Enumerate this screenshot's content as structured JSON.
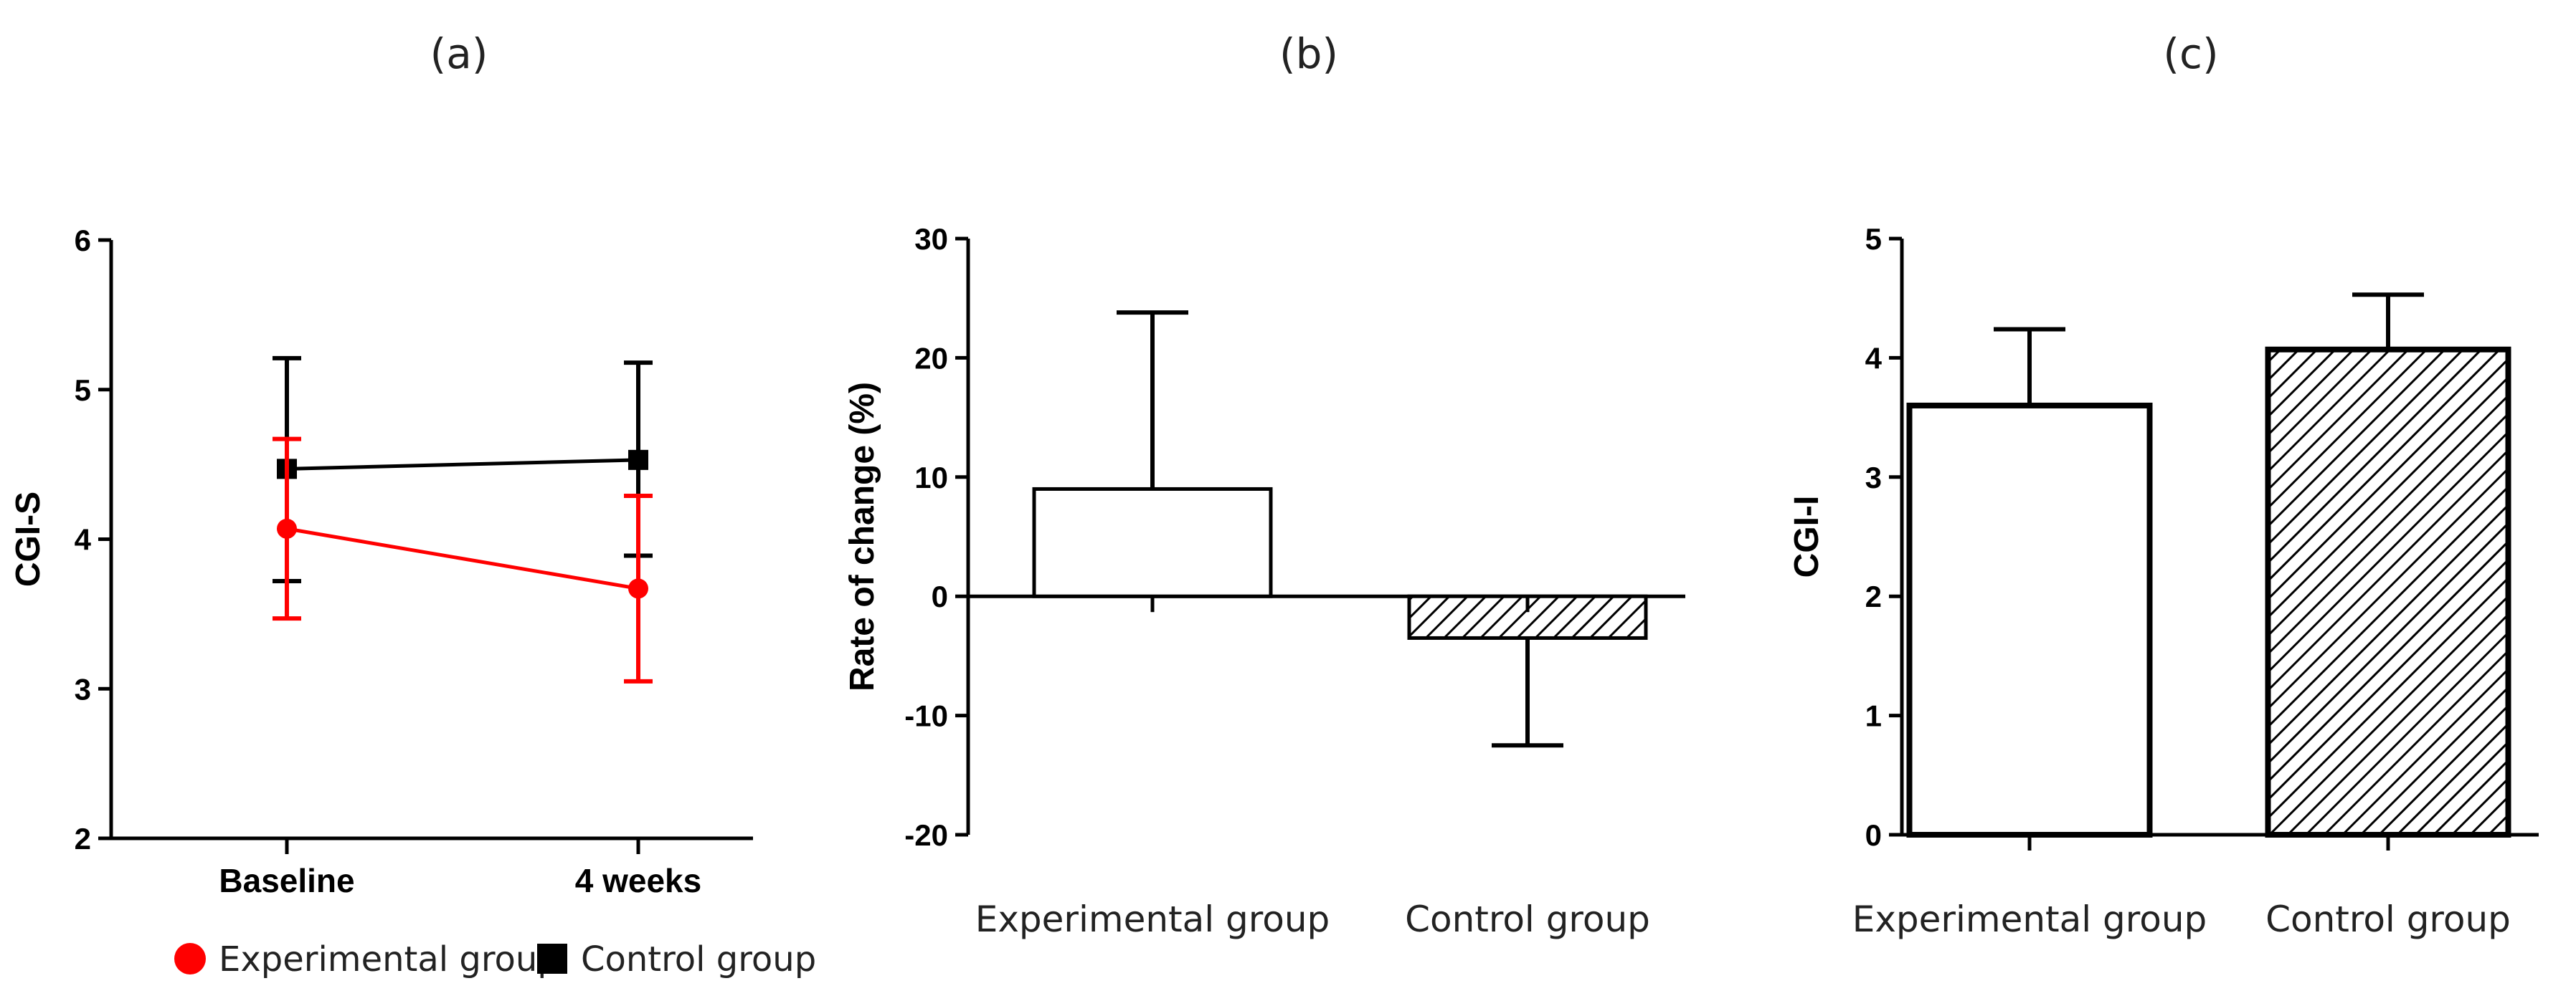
{
  "figure": {
    "panels": [
      {
        "label": "(a)"
      },
      {
        "label": "(b)"
      },
      {
        "label": "(c)"
      }
    ]
  },
  "chart_data": [
    {
      "panel": "(a)",
      "type": "line",
      "title": "",
      "xlabel": "",
      "ylabel": "CGI-S",
      "categories": [
        "Baseline",
        "4 weeks"
      ],
      "ylim": [
        2,
        6
      ],
      "yticks": [
        2,
        3,
        4,
        5,
        6
      ],
      "series": [
        {
          "name": "Experimental group",
          "color": "#ff0000",
          "marker": "circle",
          "values": [
            4.07,
            3.67
          ],
          "error_upper": [
            4.67,
            4.29
          ],
          "error_lower": [
            3.47,
            3.05
          ]
        },
        {
          "name": "Control group",
          "color": "#000000",
          "marker": "square",
          "values": [
            4.47,
            4.53
          ],
          "error_upper": [
            5.21,
            5.18
          ],
          "error_lower": [
            3.72,
            3.89
          ]
        }
      ],
      "legend": {
        "position": "bottom",
        "items": [
          {
            "name": "Experimental group",
            "color": "#ff0000",
            "marker": "circle"
          },
          {
            "name": "Control group",
            "color": "#000000",
            "marker": "square"
          }
        ]
      }
    },
    {
      "panel": "(b)",
      "type": "bar",
      "title": "",
      "xlabel": "",
      "ylabel": "Rate of change (%)",
      "categories": [
        "Experimental group",
        "Control group"
      ],
      "values": [
        9,
        -3.5
      ],
      "error": [
        14.8,
        9.0
      ],
      "fill": [
        "plain",
        "hatched"
      ],
      "ylim": [
        -20,
        30
      ],
      "yticks": [
        -20,
        -10,
        0,
        10,
        20,
        30
      ]
    },
    {
      "panel": "(c)",
      "type": "bar",
      "title": "",
      "xlabel": "",
      "ylabel": "CGI-I",
      "categories": [
        "Experimental group",
        "Control group"
      ],
      "values": [
        3.6,
        4.07
      ],
      "error": [
        0.64,
        0.46
      ],
      "fill": [
        "plain",
        "hatched"
      ],
      "ylim": [
        0,
        5
      ],
      "yticks": [
        0,
        1,
        2,
        3,
        4,
        5
      ]
    }
  ]
}
